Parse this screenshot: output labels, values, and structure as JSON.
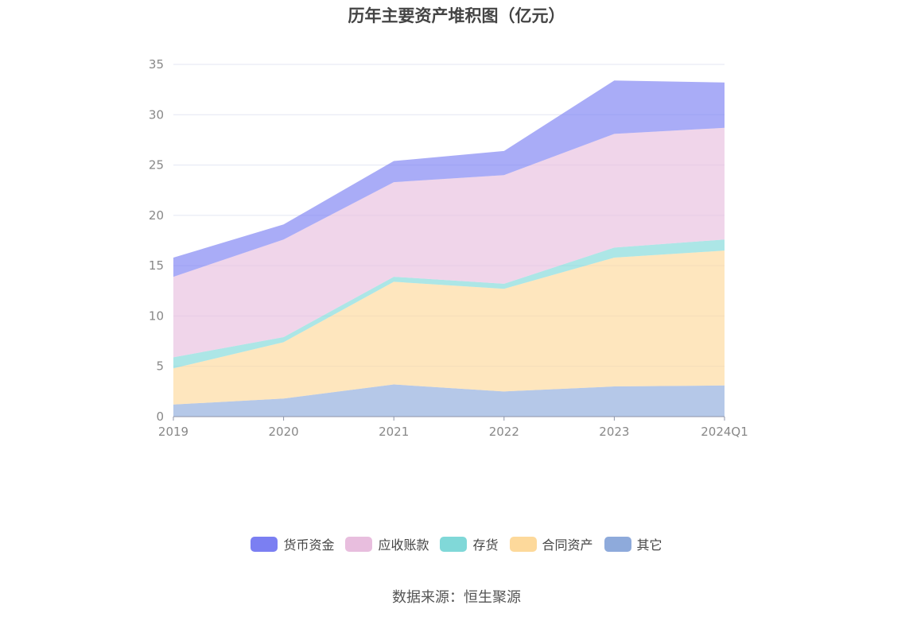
{
  "chart_data": {
    "type": "area",
    "stacked": true,
    "title": "历年主要资产堆积图（亿元）",
    "categories": [
      "2019",
      "2020",
      "2021",
      "2022",
      "2023",
      "2024Q1"
    ],
    "y_ticks": [
      0,
      5,
      10,
      15,
      20,
      25,
      30,
      35
    ],
    "ylim": [
      0,
      35
    ],
    "series": [
      {
        "name": "其它",
        "color": "#8eaadb",
        "values": [
          1.2,
          1.8,
          3.2,
          2.5,
          3.0,
          3.1
        ]
      },
      {
        "name": "合同资产",
        "color": "#fdd99b",
        "values": [
          3.6,
          5.6,
          10.2,
          10.2,
          12.8,
          13.4
        ]
      },
      {
        "name": "存货",
        "color": "#80d8d8",
        "values": [
          1.1,
          0.5,
          0.5,
          0.5,
          1.0,
          1.1
        ]
      },
      {
        "name": "应收账款",
        "color": "#e8bede",
        "values": [
          8.0,
          9.7,
          9.4,
          10.8,
          11.3,
          11.1
        ]
      },
      {
        "name": "货币资金",
        "color": "#7b7ff2",
        "values": [
          1.9,
          1.5,
          2.1,
          2.4,
          5.3,
          4.5
        ]
      }
    ],
    "legend": [
      "货币资金",
      "应收账款",
      "存货",
      "合同资产",
      "其它"
    ]
  },
  "source_text": "数据来源：恒生聚源"
}
